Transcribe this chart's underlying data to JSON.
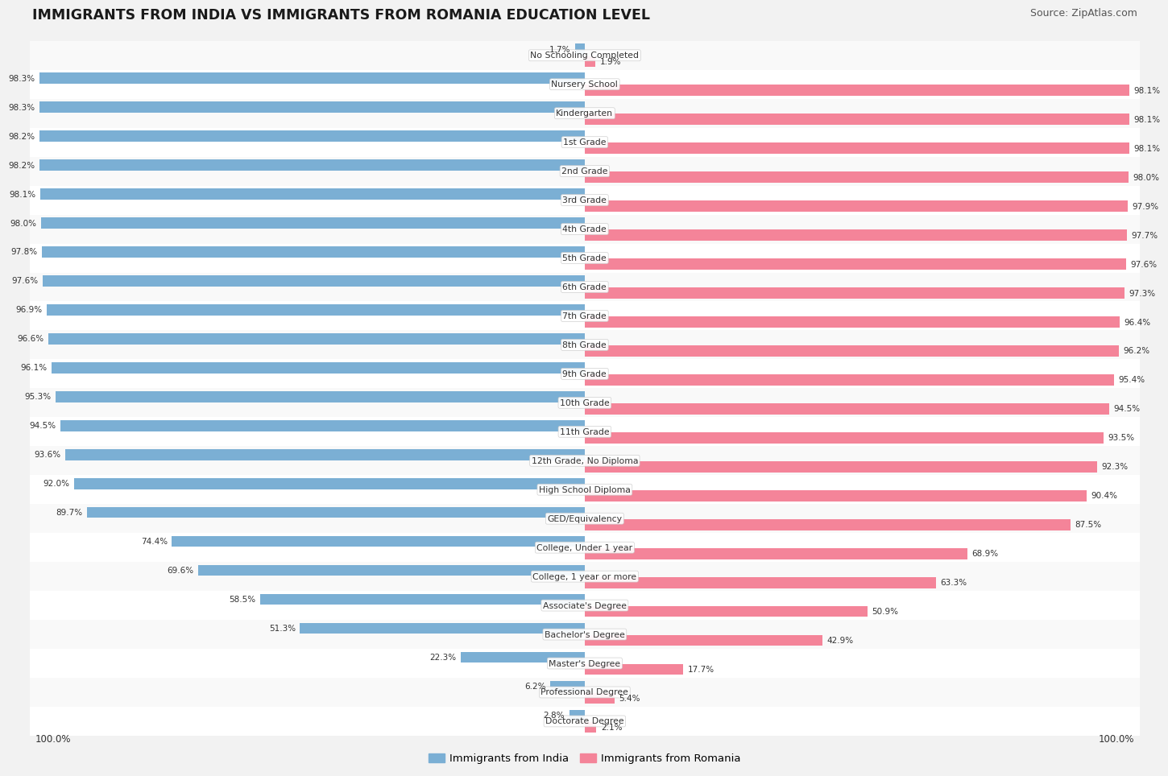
{
  "title": "IMMIGRANTS FROM INDIA VS IMMIGRANTS FROM ROMANIA EDUCATION LEVEL",
  "source": "Source: ZipAtlas.com",
  "categories": [
    "No Schooling Completed",
    "Nursery School",
    "Kindergarten",
    "1st Grade",
    "2nd Grade",
    "3rd Grade",
    "4th Grade",
    "5th Grade",
    "6th Grade",
    "7th Grade",
    "8th Grade",
    "9th Grade",
    "10th Grade",
    "11th Grade",
    "12th Grade, No Diploma",
    "High School Diploma",
    "GED/Equivalency",
    "College, Under 1 year",
    "College, 1 year or more",
    "Associate's Degree",
    "Bachelor's Degree",
    "Master's Degree",
    "Professional Degree",
    "Doctorate Degree"
  ],
  "india_values": [
    1.7,
    98.3,
    98.3,
    98.2,
    98.2,
    98.1,
    98.0,
    97.8,
    97.6,
    96.9,
    96.6,
    96.1,
    95.3,
    94.5,
    93.6,
    92.0,
    89.7,
    74.4,
    69.6,
    58.5,
    51.3,
    22.3,
    6.2,
    2.8
  ],
  "romania_values": [
    1.9,
    98.1,
    98.1,
    98.1,
    98.0,
    97.9,
    97.7,
    97.6,
    97.3,
    96.4,
    96.2,
    95.4,
    94.5,
    93.5,
    92.3,
    90.4,
    87.5,
    68.9,
    63.3,
    50.9,
    42.9,
    17.7,
    5.4,
    2.1
  ],
  "india_color": "#7bafd4",
  "romania_color": "#f48499",
  "bg_color": "#f2f2f2",
  "row_bg_even": "#f9f9f9",
  "row_bg_odd": "#ffffff",
  "legend_india": "Immigrants from India",
  "legend_romania": "Immigrants from Romania"
}
